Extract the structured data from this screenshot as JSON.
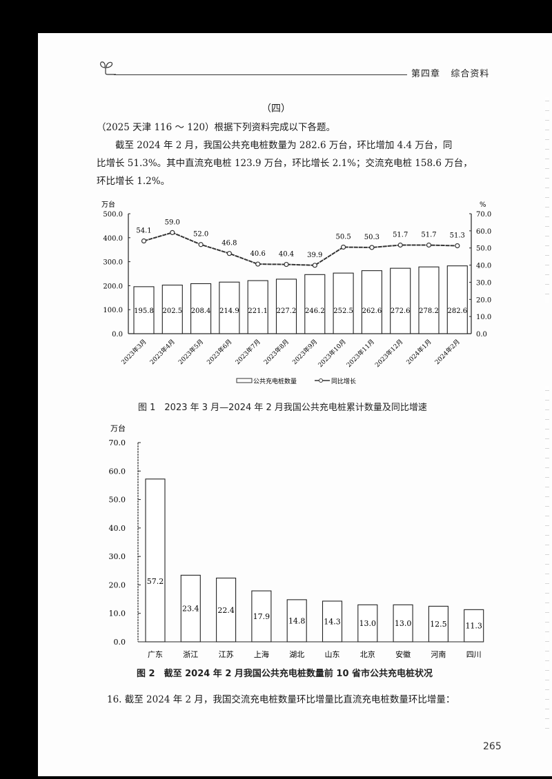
{
  "header": {
    "chapter": "第四章",
    "section": "综合资料",
    "sprout_icon": "sprout-icon"
  },
  "section_title": "（四）",
  "intro": "（2025 天津 116 ～ 120）根据下列资料完成以下各题。",
  "paragraph": {
    "line1": "截至 2024 年 2 月，我国公共充电桩数量为 282.6 万台，环比增加 4.4 万台，同",
    "line2": "比增长 51.3%。其中直流充电桩 123.9 万台，环比增长 2.1%；交流充电桩 158.6 万台，",
    "line3": "环比增长 1.2%。"
  },
  "figure1": {
    "caption": "图 1　2023 年 3 月—2024 年 2 月我国公共充电桩累计数量及同比增速"
  },
  "figure2": {
    "caption": "图 2　截至 2024 年 2 月我国公共充电桩数量前 10 省市公共充电桩状况"
  },
  "question": "16. 截至 2024 年 2 月，我国交流充电桩数量环比增量比直流充电桩数量环比增量：",
  "page_number": "265",
  "chart_data": [
    {
      "type": "bar+line",
      "title": "2023 年 3 月—2024 年 2 月我国公共充电桩累计数量及同比增速",
      "categories": [
        "2023年3月",
        "2023年4月",
        "2023年5月",
        "2023年6月",
        "2023年7月",
        "2023年8月",
        "2023年9月",
        "2023年10月",
        "2023年11月",
        "2023年12月",
        "2024年1月",
        "2024年2月"
      ],
      "series": [
        {
          "name": "公共充电桩数量",
          "type": "bar",
          "axis": "left",
          "values": [
            195.8,
            202.5,
            208.4,
            214.9,
            221.1,
            227.2,
            246.2,
            252.5,
            262.6,
            272.6,
            278.2,
            282.6
          ]
        },
        {
          "name": "同比增长",
          "type": "line",
          "axis": "right",
          "values": [
            54.1,
            59.0,
            52.0,
            46.8,
            40.6,
            40.4,
            39.9,
            50.5,
            50.3,
            51.7,
            51.7,
            51.3
          ]
        }
      ],
      "ylabel_left": "万台",
      "ylabel_right": "%",
      "yticks_left": [
        "0.0",
        "100.0",
        "200.0",
        "300.0",
        "400.0",
        "500.0"
      ],
      "yticks_right": [
        "0.0",
        "10.0",
        "20.0",
        "30.0",
        "40.0",
        "50.0",
        "60.0",
        "70.0"
      ],
      "ylim_left": [
        0,
        500
      ],
      "ylim_right": [
        0,
        70
      ],
      "legend": [
        "公共充电桩数量",
        "同比增长"
      ],
      "legend_position": "bottom",
      "grid": false
    },
    {
      "type": "bar",
      "title": "截至 2024 年 2 月我国公共充电桩数量前 10 省市公共充电桩状况",
      "categories": [
        "广东",
        "浙江",
        "江苏",
        "上海",
        "湖北",
        "山东",
        "北京",
        "安徽",
        "河南",
        "四川"
      ],
      "values": [
        57.2,
        23.4,
        22.4,
        17.9,
        14.8,
        14.3,
        13.0,
        13.0,
        12.5,
        11.3
      ],
      "ylabel": "万台",
      "yticks": [
        "0.0",
        "10.0",
        "20.0",
        "30.0",
        "40.0",
        "50.0",
        "60.0",
        "70.0"
      ],
      "ylim": [
        0,
        70
      ],
      "grid": false
    }
  ]
}
